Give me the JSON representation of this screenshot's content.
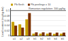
{
  "chart_data": {
    "type": "bar",
    "categories": [
      "a1",
      "a2",
      "a3",
      "b1",
      "b2",
      "b3",
      "b4",
      "b5"
    ],
    "series": [
      {
        "name": "Pb flesh",
        "color": "#c8a000",
        "values": [
          0.055,
          0.045,
          0.065,
          0.008,
          0.008,
          0.008,
          0.007,
          0.008
        ]
      },
      {
        "name": "Pb peelings x 10",
        "color": "#7a3000",
        "values": [
          0.04,
          0.032,
          0.09,
          0.013,
          0.013,
          0.012,
          0.012,
          0.012
        ]
      }
    ],
    "ylabel": "Lead content (mg/kg dw)",
    "ylim": [
      0,
      0.11
    ],
    "yticks": [
      0,
      0.02,
      0.04,
      0.06,
      0.08,
      0.1
    ],
    "reference_lines": [
      {
        "y": 0.1,
        "label": "Romanian regulation: 100 μg/kg"
      }
    ],
    "legend": "upper left",
    "grid": true
  }
}
